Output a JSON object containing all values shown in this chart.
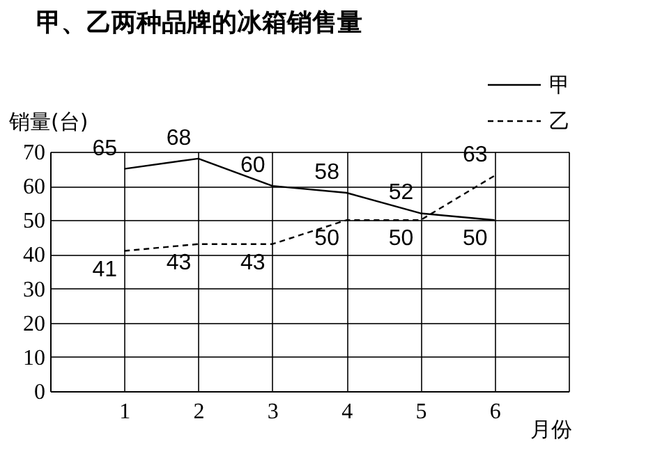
{
  "chart_data": {
    "type": "line",
    "title": "甲、乙两种品牌的冰箱销售量",
    "xlabel": "月份",
    "ylabel": "销量(台)",
    "x": [
      1,
      2,
      3,
      4,
      5,
      6
    ],
    "series": [
      {
        "name": "甲",
        "color": "#000000",
        "line_style": "solid",
        "values": [
          65,
          68,
          60,
          58,
          52,
          50
        ]
      },
      {
        "name": "乙",
        "color": "#000000",
        "line_style": "dashed",
        "values": [
          41,
          43,
          43,
          50,
          50,
          63
        ]
      }
    ],
    "xlim": [
      0,
      7
    ],
    "xticks": [
      1,
      2,
      3,
      4,
      5,
      6,
      {
        "value": 7,
        "label": null
      }
    ],
    "ylim": [
      0,
      70
    ],
    "yticks": [
      0,
      10,
      20,
      30,
      40,
      50,
      60,
      70
    ],
    "grid": true,
    "legend": "top right",
    "data_labels": true,
    "marker": "none"
  }
}
